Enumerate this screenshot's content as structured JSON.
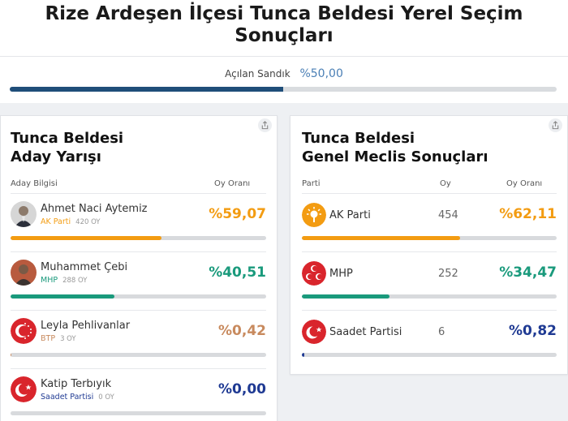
{
  "title": "Rize Ardeşen İlçesi Tunca Beldesi Yerel Seçim Sonuçları",
  "sandik": {
    "label": "Açılan Sandık",
    "value": "%50,00",
    "fraction": 0.5
  },
  "aday": {
    "title_line1": "Tunca Beldesi",
    "title_line2": "Aday Yarışı",
    "col_info": "Aday Bilgisi",
    "col_rate": "Oy Oranı",
    "candidates": [
      {
        "name": "Ahmet Naci Aytemiz",
        "party": "AK Parti",
        "votes": "420 OY",
        "pct": "%59,07",
        "share": 0.5907,
        "color": "#f39c12",
        "party_color": "#f39c12",
        "bar_color": "#f39c12",
        "icon": "person-photo-icon"
      },
      {
        "name": "Muhammet Çebi",
        "party": "MHP",
        "votes": "288 OY",
        "pct": "%40,51",
        "share": 0.4051,
        "color": "#1a9a7c",
        "party_color": "#1a9a7c",
        "bar_color": "#1a9a7c",
        "icon": "person-photo-icon"
      },
      {
        "name": "Leyla Pehlivanlar",
        "party": "BTP",
        "votes": "3 OY",
        "pct": "%0,42",
        "share": 0.0042,
        "color": "#c88a5e",
        "party_color": "#c88a5e",
        "bar_color": "#c88a5e",
        "icon": "btp-logo-icon"
      },
      {
        "name": "Katip Terbıyık",
        "party": "Saadet Partisi",
        "votes": "0 OY",
        "pct": "%0,00",
        "share": 0.0,
        "color": "#1f3a93",
        "party_color": "#1f3a93",
        "bar_color": "#1f3a93",
        "icon": "saadet-logo-icon"
      }
    ]
  },
  "meclis": {
    "title_line1": "Tunca Beldesi",
    "title_line2": "Genel Meclis Sonuçları",
    "col_party": "Parti",
    "col_votes": "Oy",
    "col_rate": "Oy Oranı",
    "parties": [
      {
        "name": "AK Parti",
        "votes": "454",
        "pct": "%62,11",
        "share": 0.6211,
        "color": "#f39c12",
        "icon": "ak-parti-logo-icon"
      },
      {
        "name": "MHP",
        "votes": "252",
        "pct": "%34,47",
        "share": 0.3447,
        "color": "#1a9a7c",
        "icon": "mhp-logo-icon"
      },
      {
        "name": "Saadet Partisi",
        "votes": "6",
        "pct": "%0,82",
        "share": 0.0082,
        "color": "#1f3a93",
        "icon": "saadet-logo-icon"
      }
    ]
  }
}
